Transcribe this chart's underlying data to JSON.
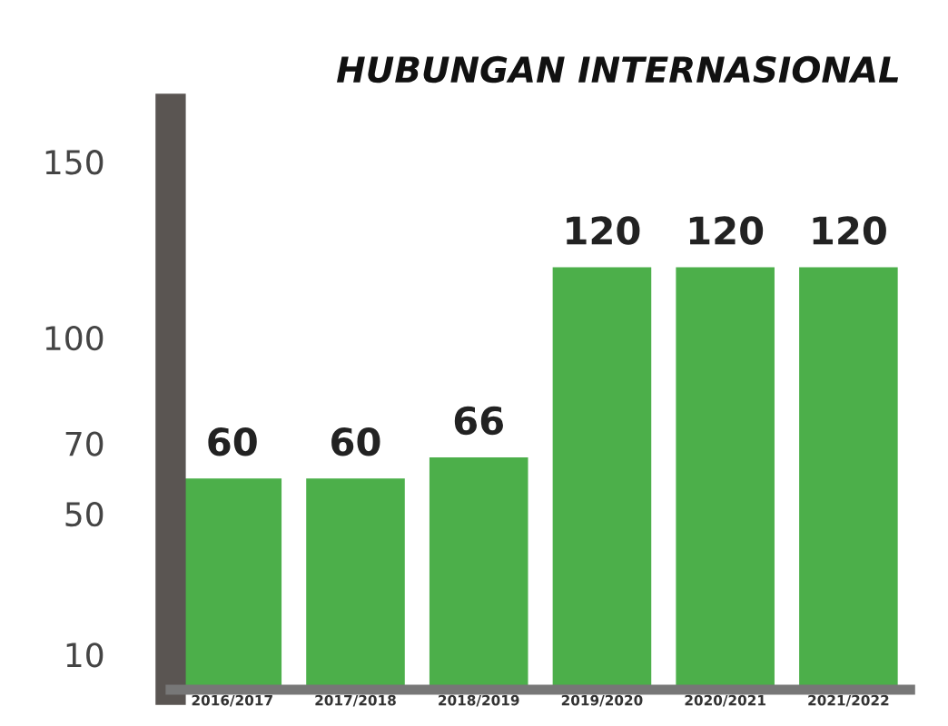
{
  "chart_data": {
    "type": "bar",
    "title": "HUBUNGAN INTERNASIONAL",
    "categories": [
      "2016/2017",
      "2017/2018",
      "2018/2019",
      "2019/2020",
      "2020/2021",
      "2021/2022"
    ],
    "values": [
      60,
      60,
      66,
      120,
      120,
      120
    ],
    "color": "#4caf4a",
    "data_labels": true,
    "ylim": [
      0,
      165
    ],
    "yticks": [
      10,
      50,
      70,
      100,
      150
    ],
    "grid": false,
    "legend": false
  }
}
